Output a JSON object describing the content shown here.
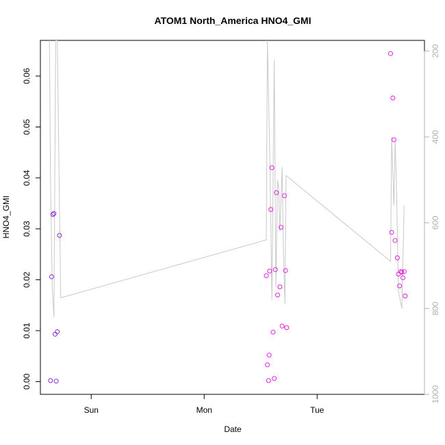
{
  "chart_data": {
    "type": "scatter",
    "title": "ATOM1 North_America HNO4_GMI",
    "xlabel": "Date",
    "ylabel": "HNO4_GMI",
    "x_ticks": [
      {
        "label": "Sun",
        "value": 1.0
      },
      {
        "label": "Mon",
        "value": 2.0
      },
      {
        "label": "Tue",
        "value": 3.0
      }
    ],
    "xlim": [
      0.55,
      3.95
    ],
    "ylim": [
      -0.0025,
      0.067
    ],
    "y_ticks": [
      0.0,
      0.01,
      0.02,
      0.03,
      0.04,
      0.05,
      0.06
    ],
    "y_tick_labels": [
      "0.00",
      "0.01",
      "0.02",
      "0.03",
      "0.04",
      "0.05",
      "0.06"
    ],
    "right_axis": {
      "reversed": true,
      "lim": [
        1000,
        175
      ],
      "ticks": [
        200,
        400,
        600,
        800,
        1000
      ],
      "tick_labels": [
        "200",
        "400",
        "600",
        "800",
        "1000"
      ],
      "color": "#b0b0b0"
    },
    "series": [
      {
        "color": "#8a2be2",
        "points": [
          {
            "x": 0.64,
            "y": 0.0002
          },
          {
            "x": 0.65,
            "y": 0.0206
          },
          {
            "x": 0.66,
            "y": 0.0328
          },
          {
            "x": 0.67,
            "y": 0.033
          },
          {
            "x": 0.68,
            "y": 0.0093
          },
          {
            "x": 0.69,
            "y": 0.0001
          },
          {
            "x": 0.7,
            "y": 0.0098
          },
          {
            "x": 0.72,
            "y": 0.0287
          }
        ]
      },
      {
        "color": "#e020e0",
        "points": [
          {
            "x": 2.55,
            "y": 0.0208
          },
          {
            "x": 2.56,
            "y": 0.0033
          },
          {
            "x": 2.57,
            "y": 0.0002
          },
          {
            "x": 2.575,
            "y": 0.0052
          },
          {
            "x": 2.58,
            "y": 0.0217
          },
          {
            "x": 2.59,
            "y": 0.0338
          },
          {
            "x": 2.6,
            "y": 0.042
          },
          {
            "x": 2.61,
            "y": 0.0097
          },
          {
            "x": 2.62,
            "y": 0.0006
          },
          {
            "x": 2.63,
            "y": 0.022
          },
          {
            "x": 2.64,
            "y": 0.0371
          },
          {
            "x": 2.65,
            "y": 0.017
          },
          {
            "x": 2.67,
            "y": 0.0186
          },
          {
            "x": 2.68,
            "y": 0.0303
          },
          {
            "x": 2.69,
            "y": 0.0109
          },
          {
            "x": 2.71,
            "y": 0.0365
          },
          {
            "x": 2.72,
            "y": 0.0218
          },
          {
            "x": 2.73,
            "y": 0.0106
          },
          {
            "x": 3.65,
            "y": 0.0644
          },
          {
            "x": 3.66,
            "y": 0.0293
          },
          {
            "x": 3.67,
            "y": 0.0557
          },
          {
            "x": 3.68,
            "y": 0.0475
          },
          {
            "x": 3.69,
            "y": 0.0277
          },
          {
            "x": 3.71,
            "y": 0.0243
          },
          {
            "x": 3.72,
            "y": 0.0211
          },
          {
            "x": 3.73,
            "y": 0.0188
          },
          {
            "x": 3.74,
            "y": 0.0216
          },
          {
            "x": 3.75,
            "y": 0.0215
          },
          {
            "x": 3.76,
            "y": 0.0204
          },
          {
            "x": 3.77,
            "y": 0.0216
          },
          {
            "x": 3.78,
            "y": 0.0168
          }
        ]
      }
    ],
    "pressure_line": {
      "color": "#c8c8c8",
      "points": [
        {
          "x": 0.63,
          "p": 175
        },
        {
          "x": 0.64,
          "p": 500
        },
        {
          "x": 0.655,
          "p": 750
        },
        {
          "x": 0.67,
          "p": 820
        },
        {
          "x": 0.685,
          "p": 175
        },
        {
          "x": 0.7,
          "p": 175
        },
        {
          "x": 0.73,
          "p": 775
        },
        {
          "x": 2.55,
          "p": 640
        },
        {
          "x": 2.56,
          "p": 175
        },
        {
          "x": 2.58,
          "p": 430
        },
        {
          "x": 2.6,
          "p": 780
        },
        {
          "x": 2.62,
          "p": 220
        },
        {
          "x": 2.635,
          "p": 750
        },
        {
          "x": 2.65,
          "p": 500
        },
        {
          "x": 2.66,
          "p": 520
        },
        {
          "x": 2.67,
          "p": 620
        },
        {
          "x": 2.69,
          "p": 470
        },
        {
          "x": 2.7,
          "p": 650
        },
        {
          "x": 2.715,
          "p": 790
        },
        {
          "x": 2.725,
          "p": 490
        },
        {
          "x": 3.65,
          "p": 690
        },
        {
          "x": 3.66,
          "p": 400
        },
        {
          "x": 3.68,
          "p": 560
        },
        {
          "x": 3.69,
          "p": 410
        },
        {
          "x": 3.7,
          "p": 490
        },
        {
          "x": 3.72,
          "p": 760
        },
        {
          "x": 3.75,
          "p": 800
        },
        {
          "x": 3.77,
          "p": 560
        }
      ]
    },
    "grid": false,
    "legend": "none"
  }
}
